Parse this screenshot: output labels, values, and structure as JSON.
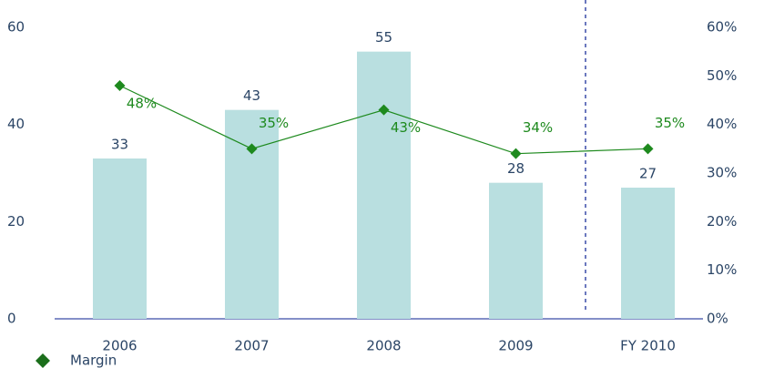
{
  "chart_data": {
    "type": "bar",
    "categories": [
      "2006",
      "2007",
      "2008",
      "2009",
      "FY 2010"
    ],
    "series": [
      {
        "type": "bar",
        "color": "#b9dfe0",
        "values": [
          33,
          43,
          55,
          28,
          27
        ]
      },
      {
        "type": "line",
        "name": "Margin",
        "color": "#1e8a1e",
        "axis": "y2",
        "values": [
          48,
          35,
          43,
          34,
          35
        ],
        "value_labels": [
          "48%",
          "35%",
          "43%",
          "34%",
          "35%"
        ]
      }
    ],
    "ylim": [
      0,
      60
    ],
    "yticks": [
      0,
      20,
      40,
      60
    ],
    "y2lim": [
      0,
      60
    ],
    "y2ticks": [
      {
        "value": 0,
        "label": "0%"
      },
      {
        "value": 10,
        "label": "10%"
      },
      {
        "value": 20,
        "label": "20%"
      },
      {
        "value": 30,
        "label": "30%"
      },
      {
        "value": 40,
        "label": "40%"
      },
      {
        "value": 50,
        "label": "50%"
      },
      {
        "value": 60,
        "label": "60%"
      }
    ]
  }
}
